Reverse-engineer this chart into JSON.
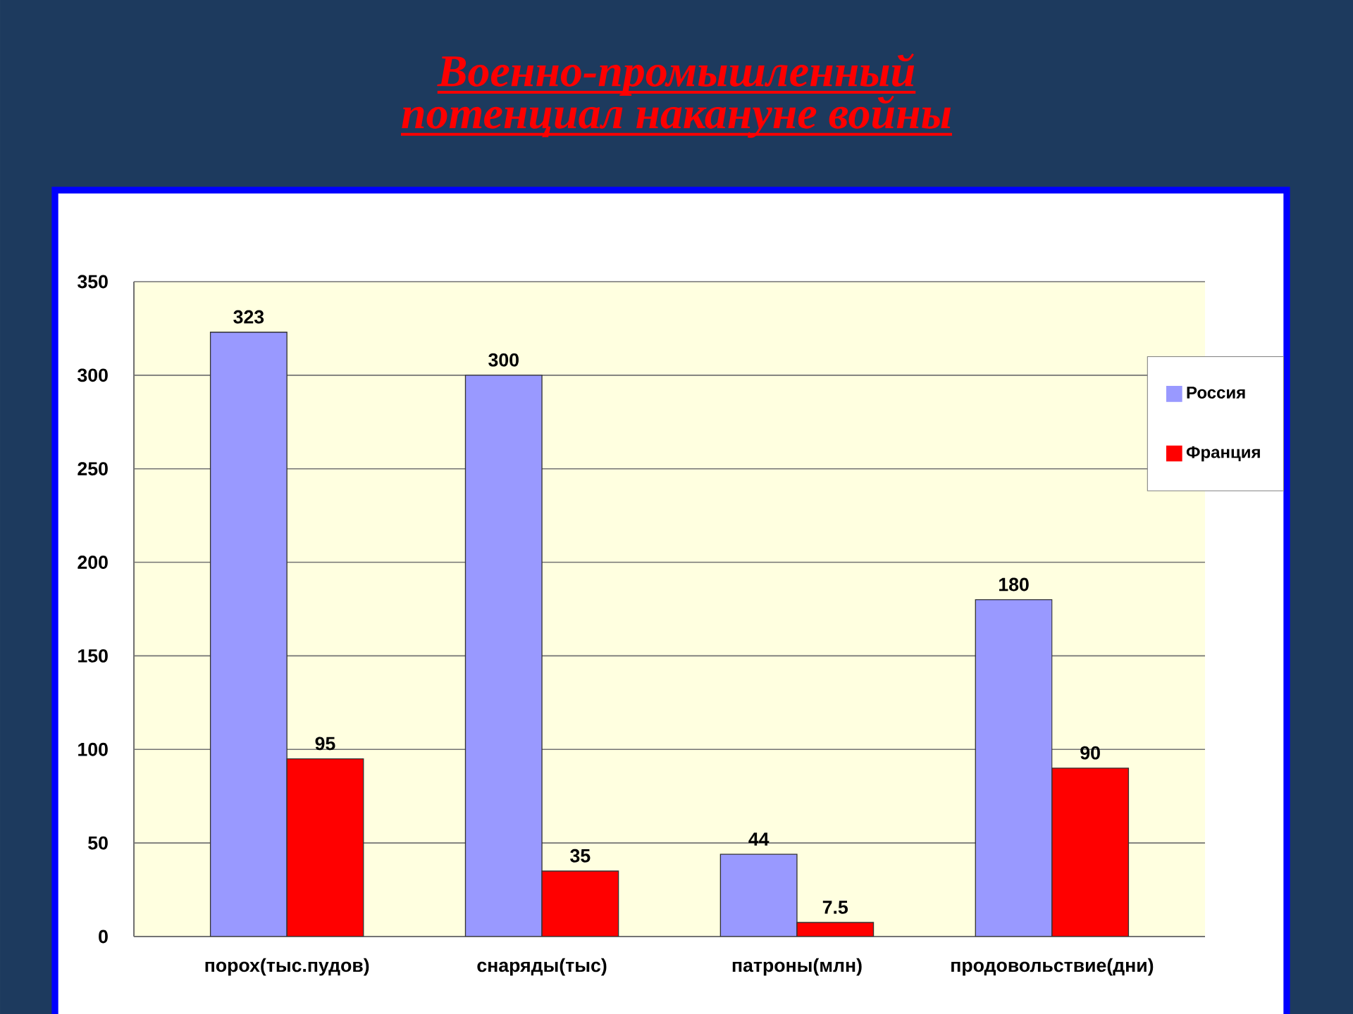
{
  "chart_data": {
    "type": "bar",
    "title": "Военно-промышленный потенциал накануне войны",
    "categories": [
      "порох(тыс.пудов)",
      "снаряды(тыс)",
      "патроны(млн)",
      "продовольствие(дни)"
    ],
    "series": [
      {
        "name": "Россия",
        "color": "#9999ff",
        "values": [
          323,
          300,
          44,
          180
        ]
      },
      {
        "name": "Франция",
        "color": "#ff0000",
        "values": [
          95,
          35,
          7.5,
          90
        ]
      }
    ],
    "ylim": [
      0,
      350
    ],
    "yticks": [
      0,
      50,
      100,
      150,
      200,
      250,
      300,
      350
    ],
    "grid": "y",
    "legend": "top right",
    "data_labels": true
  }
}
